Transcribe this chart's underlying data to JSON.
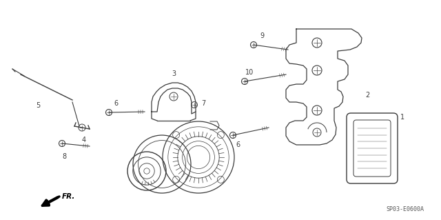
{
  "bg_color": "#ffffff",
  "line_color": "#3a3a3a",
  "diagram_code": "SP03-E0600A",
  "figsize": [
    6.4,
    3.19
  ],
  "dpi": 100
}
